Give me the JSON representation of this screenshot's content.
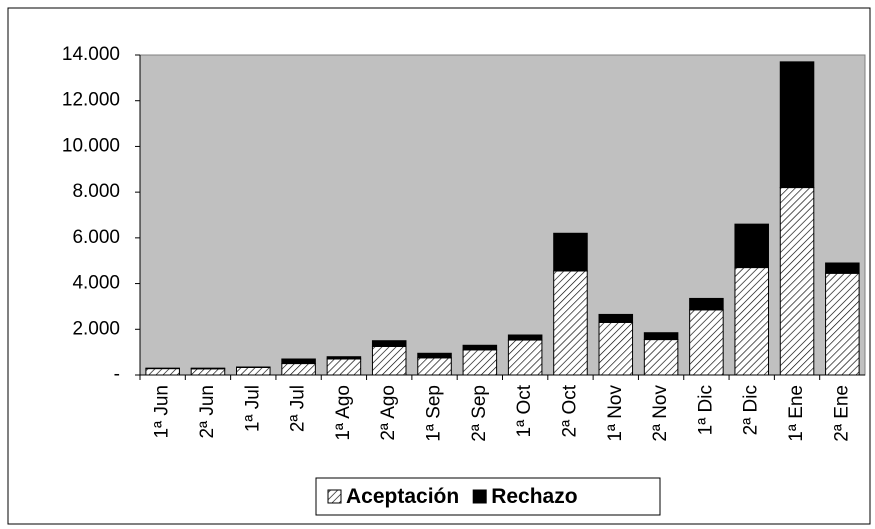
{
  "chart_data": {
    "type": "bar",
    "stacked": true,
    "categories": [
      "1ª Jun",
      "2ª Jun",
      "1ª Jul",
      "2ª Jul",
      "1ª Ago",
      "2ª Ago",
      "1ª Sep",
      "2ª Sep",
      "1ª Oct",
      "2ª Oct",
      "1ª Nov",
      "2ª Nov",
      "1ª Dic",
      "2ª Dic",
      "1ª Ene",
      "2ª Ene"
    ],
    "series": [
      {
        "name": "Aceptación",
        "color": "#ffffff",
        "pattern": "hatch",
        "values": [
          280,
          270,
          330,
          500,
          700,
          1250,
          750,
          1100,
          1530,
          4550,
          2300,
          1550,
          2850,
          4700,
          8200,
          4450
        ]
      },
      {
        "name": "Rechazo",
        "color": "#000000",
        "values": [
          20,
          30,
          20,
          200,
          100,
          250,
          200,
          200,
          220,
          1650,
          350,
          300,
          500,
          1900,
          5500,
          450
        ]
      }
    ],
    "ylim": [
      0,
      14000
    ],
    "yticks": [
      {
        "value": 0,
        "label": "-"
      },
      {
        "value": 2000,
        "label": "2.000"
      },
      {
        "value": 4000,
        "label": "4.000"
      },
      {
        "value": 6000,
        "label": "6.000"
      },
      {
        "value": 8000,
        "label": "8.000"
      },
      {
        "value": 10000,
        "label": "10.000"
      },
      {
        "value": 12000,
        "label": "12.000"
      },
      {
        "value": 14000,
        "label": "14.000"
      }
    ],
    "grid": false,
    "plot_background": "#c0c0c0",
    "legend": "bottom"
  }
}
